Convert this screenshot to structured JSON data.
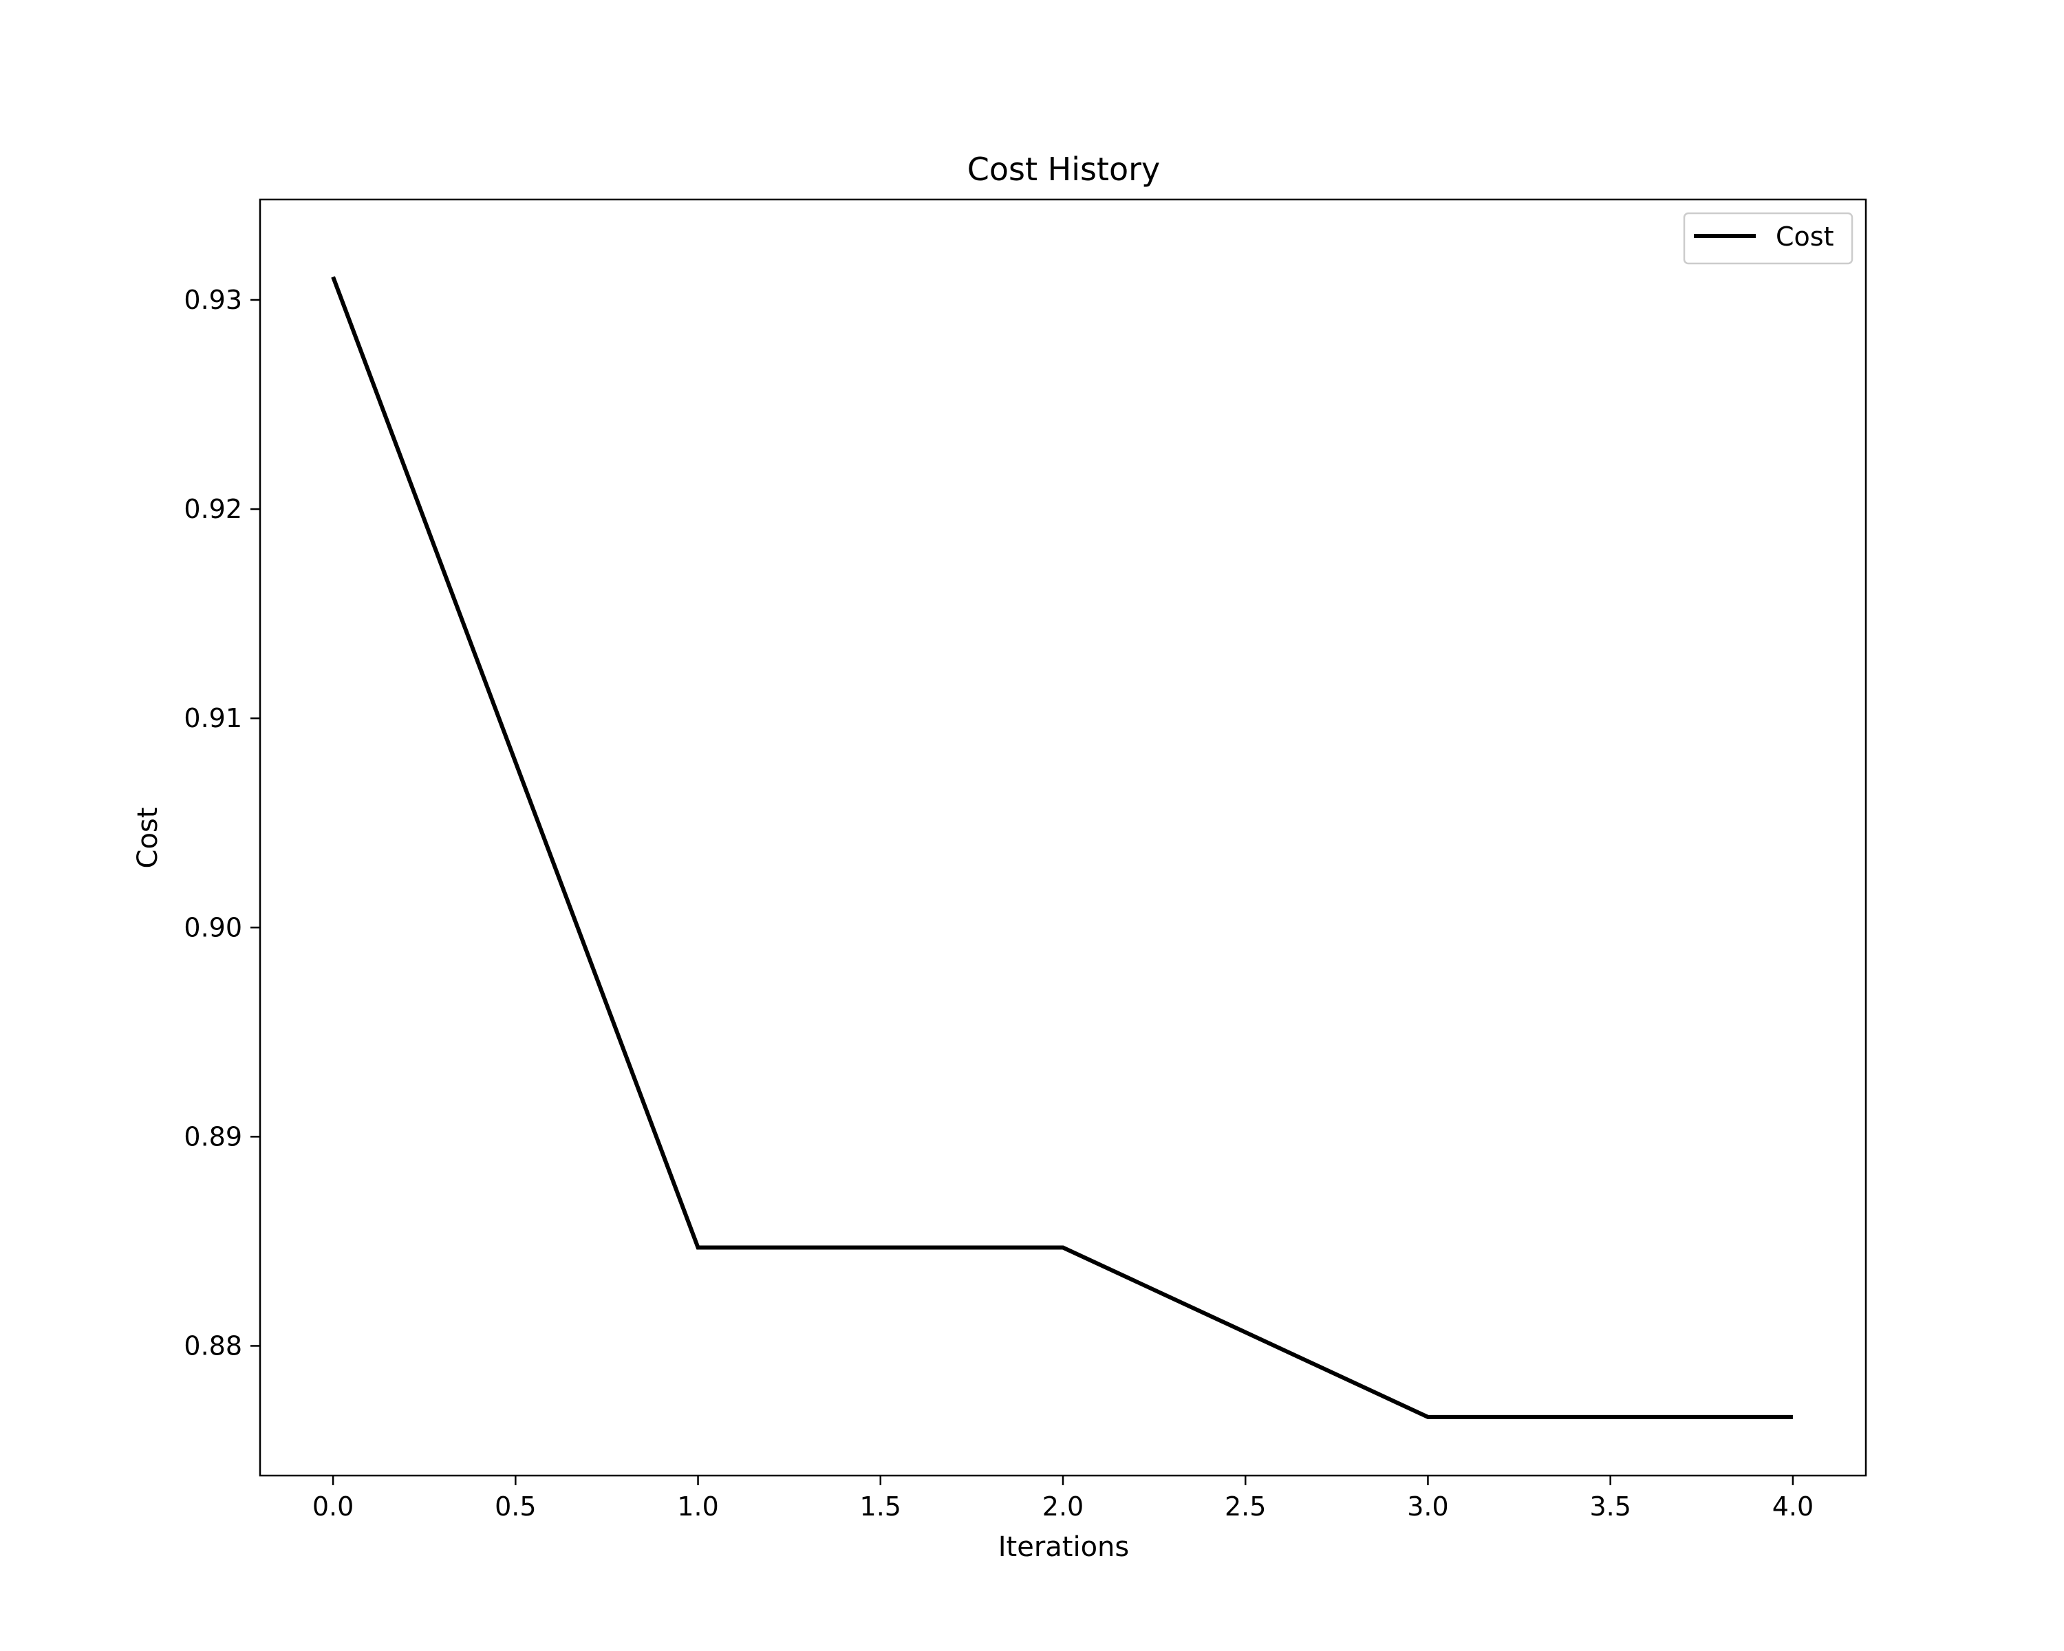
{
  "chart_data": {
    "type": "line",
    "title": "Cost History",
    "xlabel": "Iterations",
    "ylabel": "Cost",
    "x": [
      0,
      1,
      2,
      3,
      4
    ],
    "series": [
      {
        "name": "Cost",
        "values": [
          0.9311,
          0.8847,
          0.8847,
          0.8766,
          0.8766
        ],
        "color": "#000000"
      }
    ],
    "xlim": [
      -0.2,
      4.2
    ],
    "ylim": [
      0.8738,
      0.9348
    ],
    "xticks": [
      0.0,
      0.5,
      1.0,
      1.5,
      2.0,
      2.5,
      3.0,
      3.5,
      4.0
    ],
    "xtick_labels": [
      "0.0",
      "0.5",
      "1.0",
      "1.5",
      "2.0",
      "2.5",
      "3.0",
      "3.5",
      "4.0"
    ],
    "yticks": [
      0.88,
      0.89,
      0.9,
      0.91,
      0.92,
      0.93
    ],
    "ytick_labels": [
      "0.88",
      "0.89",
      "0.90",
      "0.91",
      "0.92",
      "0.93"
    ],
    "grid": false,
    "legend_position": "top-right"
  }
}
